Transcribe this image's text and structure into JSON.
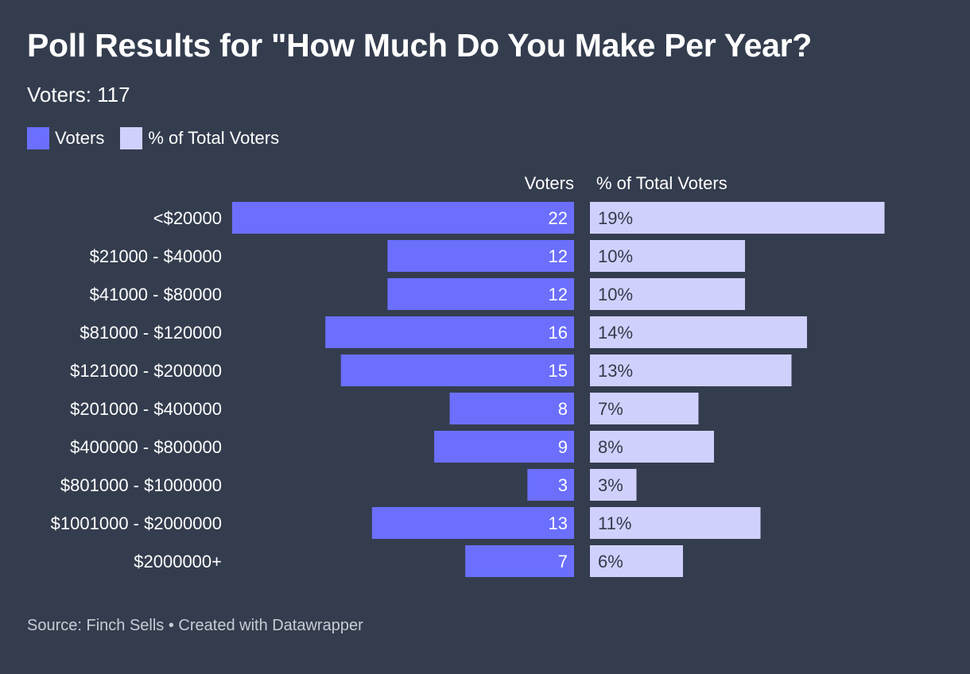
{
  "header": {
    "title": "Poll Results for \"How Much Do You Make Per Year?",
    "subtitle": "Voters: 117"
  },
  "legend": {
    "items": [
      {
        "label": "Voters",
        "color": "#6b6ffc"
      },
      {
        "label": "% of Total Voters",
        "color": "#d0d0fd"
      }
    ]
  },
  "footer": {
    "source": "Source: Finch Sells • Created with Datawrapper"
  },
  "chart_data": {
    "type": "bar",
    "title": "Poll Results for \"How Much Do You Make Per Year?",
    "column_headers": [
      "Voters",
      "% of Total Voters"
    ],
    "categories": [
      "<$20000",
      "$21000 - $40000",
      "$41000 - $80000",
      "$81000 - $120000",
      "$121000 - $200000",
      "$201000 - $400000",
      "$400000 - $800000",
      "$801000 - $1000000",
      "$1001000 - $2000000",
      "$2000000+"
    ],
    "series": [
      {
        "name": "Voters",
        "values": [
          22,
          12,
          12,
          16,
          15,
          8,
          9,
          3,
          13,
          7
        ],
        "labels": [
          "22",
          "12",
          "12",
          "16",
          "15",
          "8",
          "9",
          "3",
          "13",
          "7"
        ],
        "color": "#6b6ffc"
      },
      {
        "name": "% of Total Voters",
        "values": [
          19,
          10,
          10,
          14,
          13,
          7,
          8,
          3,
          11,
          6
        ],
        "labels": [
          "19%",
          "10%",
          "10%",
          "14%",
          "13%",
          "7%",
          "8%",
          "3%",
          "11%",
          "6%"
        ],
        "color": "#d0d0fd"
      }
    ]
  }
}
